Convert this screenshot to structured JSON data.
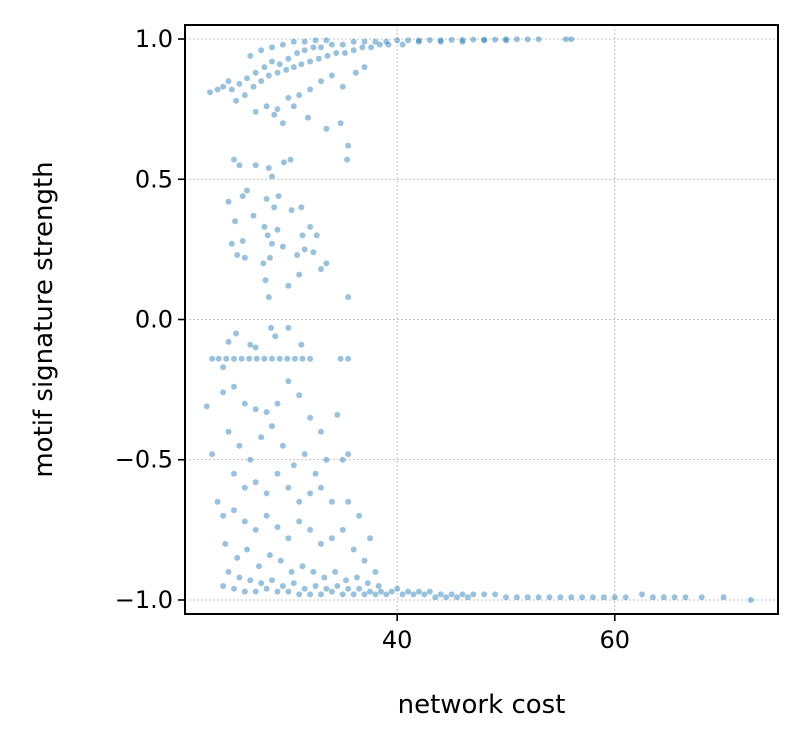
{
  "chart_data": {
    "type": "scatter",
    "title": "",
    "xlabel": "network cost",
    "ylabel": "motif signature strength",
    "xlim": [
      20.5,
      75
    ],
    "ylim": [
      -1.05,
      1.05
    ],
    "x_ticks": [
      40,
      60
    ],
    "y_ticks": [
      1.0,
      0.5,
      0.0,
      -0.5,
      -1.0
    ],
    "x_tick_labels": [
      "40",
      "60"
    ],
    "y_tick_labels": [
      "1.0",
      "0.5",
      "0.0",
      "−0.5",
      "−1.0"
    ],
    "grid": true,
    "point_color": "#1f77b4",
    "point_alpha": 0.45,
    "series": [
      {
        "points": [
          [
            24.8,
            0.82
          ],
          [
            25.5,
            0.84
          ],
          [
            26.2,
            0.86
          ],
          [
            27,
            0.88
          ],
          [
            27.8,
            0.9
          ],
          [
            28.5,
            0.92
          ],
          [
            29.2,
            0.91
          ],
          [
            30,
            0.93
          ],
          [
            30.8,
            0.95
          ],
          [
            31.5,
            0.96
          ],
          [
            32.3,
            0.97
          ],
          [
            33,
            0.97
          ],
          [
            34,
            0.98
          ],
          [
            35,
            0.98
          ],
          [
            36,
            0.99
          ],
          [
            37,
            0.99
          ],
          [
            38,
            0.99
          ],
          [
            39,
            0.99
          ],
          [
            40,
            0.995
          ],
          [
            41,
            0.995
          ],
          [
            42,
            0.995
          ],
          [
            43,
            0.996
          ],
          [
            44,
            0.996
          ],
          [
            45,
            0.997
          ],
          [
            46,
            0.997
          ],
          [
            47,
            0.998
          ],
          [
            48,
            0.998
          ],
          [
            49,
            0.998
          ],
          [
            50,
            0.999
          ],
          [
            51,
            0.999
          ],
          [
            52,
            0.999
          ],
          [
            53,
            0.999
          ],
          [
            55.5,
            0.999
          ],
          [
            56,
            0.999
          ],
          [
            25.2,
            0.78
          ],
          [
            26,
            0.8
          ],
          [
            26.8,
            0.83
          ],
          [
            27.5,
            0.85
          ],
          [
            28.2,
            0.87
          ],
          [
            29,
            0.88
          ],
          [
            29.8,
            0.89
          ],
          [
            30.5,
            0.9
          ],
          [
            31.2,
            0.91
          ],
          [
            32,
            0.92
          ],
          [
            32.8,
            0.93
          ],
          [
            33.6,
            0.94
          ],
          [
            34.4,
            0.95
          ],
          [
            35.2,
            0.95
          ],
          [
            36,
            0.96
          ],
          [
            36.8,
            0.97
          ],
          [
            37.6,
            0.97
          ],
          [
            38.4,
            0.98
          ],
          [
            39.2,
            0.98
          ],
          [
            40.5,
            0.98
          ],
          [
            42,
            0.99
          ],
          [
            44,
            0.99
          ],
          [
            46,
            0.99
          ],
          [
            48,
            0.995
          ],
          [
            50,
            0.995
          ],
          [
            27,
            0.74
          ],
          [
            28,
            0.76
          ],
          [
            29,
            0.75
          ],
          [
            30,
            0.79
          ],
          [
            31,
            0.8
          ],
          [
            32,
            0.82
          ],
          [
            33,
            0.85
          ],
          [
            34,
            0.87
          ],
          [
            35,
            0.83
          ],
          [
            36.2,
            0.88
          ],
          [
            37,
            0.9
          ],
          [
            35.5,
            0.62
          ],
          [
            35.4,
            0.57
          ],
          [
            34.8,
            0.7
          ],
          [
            33.5,
            0.68
          ],
          [
            31.8,
            0.72
          ],
          [
            30.5,
            0.76
          ],
          [
            29.5,
            0.7
          ],
          [
            28.7,
            0.73
          ],
          [
            22.8,
            0.81
          ],
          [
            23.5,
            0.82
          ],
          [
            24,
            0.83
          ],
          [
            24.5,
            0.85
          ],
          [
            26.5,
            0.94
          ],
          [
            27.5,
            0.96
          ],
          [
            28.5,
            0.97
          ],
          [
            29.5,
            0.98
          ],
          [
            30.5,
            0.99
          ],
          [
            31.5,
            0.99
          ],
          [
            32.5,
            0.995
          ],
          [
            33.5,
            0.995
          ],
          [
            25,
            0.57
          ],
          [
            25.5,
            0.55
          ],
          [
            27,
            0.55
          ],
          [
            28.2,
            0.54
          ],
          [
            29.6,
            0.56
          ],
          [
            30.2,
            0.57
          ],
          [
            28.5,
            0.51
          ],
          [
            25.8,
            0.44
          ],
          [
            26.2,
            0.46
          ],
          [
            24.5,
            0.42
          ],
          [
            25.1,
            0.35
          ],
          [
            26.8,
            0.37
          ],
          [
            28,
            0.43
          ],
          [
            28.7,
            0.4
          ],
          [
            29.1,
            0.44
          ],
          [
            30.3,
            0.39
          ],
          [
            31.2,
            0.4
          ],
          [
            32,
            0.33
          ],
          [
            32.6,
            0.3
          ],
          [
            27.8,
            0.33
          ],
          [
            28.1,
            0.3
          ],
          [
            28.5,
            0.27
          ],
          [
            27.7,
            0.2
          ],
          [
            28.3,
            0.22
          ],
          [
            29.5,
            0.26
          ],
          [
            30.8,
            0.23
          ],
          [
            31.5,
            0.25
          ],
          [
            32.3,
            0.24
          ],
          [
            33.5,
            0.2
          ],
          [
            33,
            0.18
          ],
          [
            31,
            0.16
          ],
          [
            30,
            0.12
          ],
          [
            27.9,
            0.14
          ],
          [
            28.2,
            0.08
          ],
          [
            28.4,
            -0.03
          ],
          [
            25.8,
            0.28
          ],
          [
            24.8,
            0.27
          ],
          [
            25.3,
            0.23
          ],
          [
            26,
            0.22
          ],
          [
            35.5,
            0.08
          ],
          [
            31.3,
            0.3
          ],
          [
            29,
            0.32
          ],
          [
            24.5,
            -0.08
          ],
          [
            25.2,
            -0.05
          ],
          [
            28.8,
            -0.06
          ],
          [
            30,
            -0.03
          ],
          [
            31.2,
            -0.09
          ],
          [
            24,
            -0.17
          ],
          [
            26.5,
            -0.09
          ],
          [
            27,
            -0.1
          ],
          [
            23,
            -0.14
          ],
          [
            23.6,
            -0.14
          ],
          [
            24.3,
            -0.14
          ],
          [
            25,
            -0.14
          ],
          [
            25.7,
            -0.14
          ],
          [
            26.4,
            -0.14
          ],
          [
            27.1,
            -0.14
          ],
          [
            27.8,
            -0.14
          ],
          [
            28.5,
            -0.14
          ],
          [
            29.2,
            -0.14
          ],
          [
            29.9,
            -0.14
          ],
          [
            30.6,
            -0.14
          ],
          [
            31.3,
            -0.14
          ],
          [
            32,
            -0.14
          ],
          [
            34.8,
            -0.14
          ],
          [
            35.5,
            -0.14
          ],
          [
            24,
            -0.26
          ],
          [
            25,
            -0.24
          ],
          [
            26,
            -0.3
          ],
          [
            27,
            -0.32
          ],
          [
            28,
            -0.33
          ],
          [
            29,
            -0.3
          ],
          [
            30,
            -0.22
          ],
          [
            31,
            -0.27
          ],
          [
            32,
            -0.35
          ],
          [
            33,
            -0.4
          ],
          [
            34.5,
            -0.34
          ],
          [
            35,
            -0.5
          ],
          [
            35.5,
            -0.48
          ],
          [
            22.5,
            -0.31
          ],
          [
            23,
            -0.48
          ],
          [
            24.5,
            -0.4
          ],
          [
            25.5,
            -0.45
          ],
          [
            26.5,
            -0.5
          ],
          [
            27.5,
            -0.42
          ],
          [
            28.5,
            -0.38
          ],
          [
            29.5,
            -0.45
          ],
          [
            30.5,
            -0.52
          ],
          [
            31.5,
            -0.48
          ],
          [
            32.5,
            -0.55
          ],
          [
            33.5,
            -0.5
          ],
          [
            25,
            -0.55
          ],
          [
            26,
            -0.6
          ],
          [
            27,
            -0.58
          ],
          [
            28,
            -0.62
          ],
          [
            29,
            -0.55
          ],
          [
            30,
            -0.6
          ],
          [
            31,
            -0.65
          ],
          [
            32,
            -0.62
          ],
          [
            33,
            -0.6
          ],
          [
            34,
            -0.65
          ],
          [
            24,
            -0.7
          ],
          [
            25,
            -0.68
          ],
          [
            26,
            -0.72
          ],
          [
            27,
            -0.75
          ],
          [
            28,
            -0.7
          ],
          [
            29,
            -0.74
          ],
          [
            30,
            -0.78
          ],
          [
            31,
            -0.72
          ],
          [
            32,
            -0.75
          ],
          [
            33,
            -0.8
          ],
          [
            34,
            -0.78
          ],
          [
            35,
            -0.75
          ],
          [
            36,
            -0.82
          ],
          [
            37,
            -0.86
          ],
          [
            38,
            -0.9
          ],
          [
            35.5,
            -0.65
          ],
          [
            36.5,
            -0.7
          ],
          [
            37.5,
            -0.78
          ],
          [
            23.5,
            -0.65
          ],
          [
            24.2,
            -0.8
          ],
          [
            25.3,
            -0.85
          ],
          [
            26.2,
            -0.82
          ],
          [
            27.3,
            -0.88
          ],
          [
            28.3,
            -0.84
          ],
          [
            29.3,
            -0.86
          ],
          [
            30.3,
            -0.9
          ],
          [
            31.3,
            -0.88
          ],
          [
            32.3,
            -0.9
          ],
          [
            33.3,
            -0.92
          ],
          [
            34.3,
            -0.9
          ],
          [
            35.3,
            -0.93
          ],
          [
            36.3,
            -0.92
          ],
          [
            37.3,
            -0.94
          ],
          [
            38.3,
            -0.95
          ],
          [
            24.5,
            -0.9
          ],
          [
            25.5,
            -0.92
          ],
          [
            26.5,
            -0.93
          ],
          [
            27.5,
            -0.94
          ],
          [
            28.5,
            -0.93
          ],
          [
            29.5,
            -0.95
          ],
          [
            30.5,
            -0.94
          ],
          [
            31.5,
            -0.96
          ],
          [
            32.5,
            -0.95
          ],
          [
            33.5,
            -0.96
          ],
          [
            34.5,
            -0.95
          ],
          [
            35.5,
            -0.96
          ],
          [
            36.5,
            -0.96
          ],
          [
            37.5,
            -0.97
          ],
          [
            38.5,
            -0.97
          ],
          [
            39.5,
            -0.97
          ],
          [
            40,
            -0.96
          ],
          [
            41,
            -0.97
          ],
          [
            42,
            -0.97
          ],
          [
            43,
            -0.97
          ],
          [
            44,
            -0.98
          ],
          [
            45,
            -0.98
          ],
          [
            46,
            -0.98
          ],
          [
            47,
            -0.98
          ],
          [
            48,
            -0.98
          ],
          [
            49,
            -0.98
          ],
          [
            50,
            -0.99
          ],
          [
            51,
            -0.99
          ],
          [
            52,
            -0.99
          ],
          [
            53,
            -0.99
          ],
          [
            54,
            -0.99
          ],
          [
            55,
            -0.99
          ],
          [
            56,
            -0.99
          ],
          [
            57,
            -0.99
          ],
          [
            58,
            -0.99
          ],
          [
            59,
            -0.99
          ],
          [
            60,
            -0.99
          ],
          [
            61,
            -0.99
          ],
          [
            62.5,
            -0.98
          ],
          [
            63.5,
            -0.99
          ],
          [
            64.5,
            -0.99
          ],
          [
            65.5,
            -0.99
          ],
          [
            66.5,
            -0.99
          ],
          [
            68,
            -0.99
          ],
          [
            70,
            -0.99
          ],
          [
            72.5,
            -1.0
          ],
          [
            24,
            -0.95
          ],
          [
            25,
            -0.96
          ],
          [
            26,
            -0.97
          ],
          [
            27,
            -0.97
          ],
          [
            28,
            -0.96
          ],
          [
            29,
            -0.97
          ],
          [
            30,
            -0.97
          ],
          [
            31,
            -0.98
          ],
          [
            32,
            -0.98
          ],
          [
            33,
            -0.98
          ],
          [
            34,
            -0.97
          ],
          [
            35,
            -0.98
          ],
          [
            36,
            -0.98
          ],
          [
            37,
            -0.98
          ],
          [
            38,
            -0.98
          ],
          [
            39,
            -0.98
          ],
          [
            40.5,
            -0.98
          ],
          [
            41.5,
            -0.98
          ],
          [
            42.5,
            -0.98
          ],
          [
            43.5,
            -0.99
          ],
          [
            44.5,
            -0.99
          ],
          [
            45.5,
            -0.99
          ],
          [
            46.5,
            -0.99
          ]
        ]
      }
    ]
  }
}
